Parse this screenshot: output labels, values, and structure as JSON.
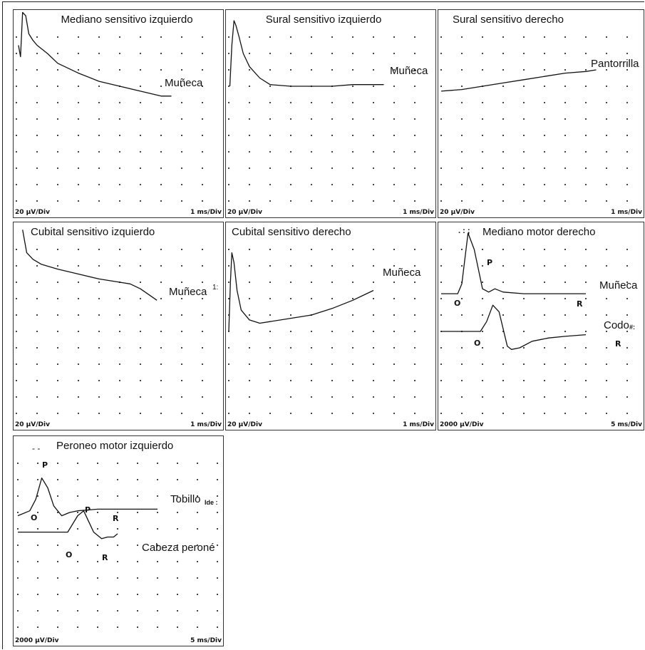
{
  "chart_data": [
    {
      "type": "line",
      "title": "Mediano sensitivo izquierdo",
      "scale_y": "20 μV/Div",
      "scale_x": "1 ms/Div",
      "grid": true,
      "series": [
        {
          "name": "Muñeca",
          "x": [
            0.1,
            0.2,
            0.3,
            0.45,
            0.6,
            0.8,
            1.0,
            1.5,
            2.0,
            3.0,
            4.0,
            5.0,
            6.0,
            7.0,
            7.5
          ],
          "y": [
            -1.5,
            -2.2,
            0.5,
            0.3,
            -0.8,
            -1.2,
            -1.5,
            -2.0,
            -2.6,
            -3.2,
            -3.7,
            -4.0,
            -4.3,
            -4.6,
            -4.6
          ]
        }
      ]
    },
    {
      "type": "line",
      "title": "Sural sensitivo izquierdo",
      "scale_y": "20 μV/Div",
      "scale_x": "1 ms/Div",
      "grid": true,
      "series": [
        {
          "name": "Muñeca",
          "x": [
            0.05,
            0.15,
            0.25,
            0.35,
            0.5,
            0.7,
            1.0,
            1.5,
            2.0,
            3.0,
            4.0,
            5.0,
            6.0,
            7.0,
            7.5
          ],
          "y": [
            -4.0,
            -1.5,
            0.0,
            -0.3,
            -1.0,
            -2.0,
            -2.8,
            -3.5,
            -3.9,
            -4.0,
            -4.0,
            -4.0,
            -3.9,
            -3.9,
            -3.9
          ]
        }
      ]
    },
    {
      "type": "line",
      "title": "Sural sensitivo derecho",
      "scale_y": "20 μV/Div",
      "scale_x": "1 ms/Div",
      "grid": true,
      "series": [
        {
          "name": "Pantorrilla",
          "x": [
            0.0,
            1.0,
            2.0,
            3.0,
            4.0,
            5.0,
            6.0,
            7.0,
            7.5
          ],
          "y": [
            -4.3,
            -4.2,
            -4.0,
            -3.8,
            -3.6,
            -3.4,
            -3.2,
            -3.1,
            -3.0
          ]
        }
      ]
    },
    {
      "type": "line",
      "title": "Cubital sensitivo izquierdo",
      "scale_y": "20 μV/Div",
      "scale_x": "1 ms/Div",
      "grid": true,
      "series": [
        {
          "name": "Muñeca",
          "x": [
            0.3,
            0.5,
            0.8,
            1.2,
            2.0,
            3.0,
            4.0,
            5.0,
            5.5,
            6.0,
            6.8
          ],
          "y": [
            0.2,
            -1.2,
            -1.6,
            -1.9,
            -2.2,
            -2.5,
            -2.8,
            -3.0,
            -3.1,
            -3.4,
            -4.1
          ]
        }
      ]
    },
    {
      "type": "line",
      "title": "Cubital sensitivo derecho",
      "scale_y": "20 μV/Div",
      "scale_x": "1 ms/Div",
      "grid": true,
      "series": [
        {
          "name": "Muñeca",
          "x": [
            0.0,
            0.08,
            0.15,
            0.25,
            0.4,
            0.6,
            1.0,
            1.5,
            2.0,
            3.0,
            4.0,
            5.0,
            6.0,
            7.0
          ],
          "y": [
            -6.0,
            -3.0,
            -1.2,
            -1.8,
            -3.5,
            -4.7,
            -5.3,
            -5.5,
            -5.4,
            -5.2,
            -5.0,
            -4.6,
            -4.1,
            -3.5
          ]
        }
      ]
    },
    {
      "type": "line",
      "title": "Mediano motor derecho",
      "scale_y": "2000 μV/Div",
      "scale_x": "5 ms/Div",
      "grid": true,
      "series": [
        {
          "name": "Muñeca",
          "x": [
            0.0,
            0.8,
            1.0,
            1.3,
            1.6,
            2.0,
            2.3,
            2.6,
            3.0,
            4.0,
            5.0,
            7.0
          ],
          "y": [
            -3.7,
            -3.7,
            -3.1,
            0.0,
            -1.0,
            -3.4,
            -3.6,
            -3.4,
            -3.6,
            -3.7,
            -3.7,
            -3.7
          ]
        },
        {
          "name": "Codo",
          "x": [
            0.0,
            1.9,
            2.2,
            2.5,
            2.8,
            3.2,
            3.4,
            3.8,
            4.4,
            5.2,
            6.0,
            7.0
          ],
          "y": [
            -6.0,
            -6.0,
            -5.4,
            -4.4,
            -4.8,
            -6.9,
            -7.1,
            -7.0,
            -6.6,
            -6.4,
            -6.3,
            -6.2
          ]
        }
      ],
      "markers": [
        "O",
        "P",
        "R",
        "O",
        "R"
      ]
    },
    {
      "type": "line",
      "title": "Peroneo motor izquierdo",
      "scale_y": "2000 μV/Div",
      "scale_x": "5 ms/Div",
      "grid": true,
      "series": [
        {
          "name": "Tobillo",
          "x": [
            0.0,
            0.6,
            0.9,
            1.2,
            1.5,
            1.8,
            2.2,
            2.6,
            3.0,
            4.0,
            5.5,
            7.0
          ],
          "y": [
            -4.2,
            -3.9,
            -3.2,
            -1.9,
            -2.5,
            -3.6,
            -4.2,
            -4.0,
            -3.9,
            -3.8,
            -3.8,
            -3.8
          ]
        },
        {
          "name": "Cabeza peroné",
          "x": [
            0.0,
            2.0,
            2.5,
            3.0,
            3.3,
            3.8,
            4.2,
            4.5,
            4.8,
            5.0
          ],
          "y": [
            -5.2,
            -5.2,
            -5.2,
            -4.2,
            -3.9,
            -5.2,
            -5.6,
            -5.5,
            -5.5,
            -5.3
          ]
        }
      ],
      "markers": [
        "P",
        "O",
        "R",
        "P",
        "O",
        "R"
      ]
    }
  ],
  "labels": {
    "tobillo_suffix": "Ide :",
    "codo_suffix": "#:",
    "cubital_izq_suffix": "1:",
    "mediano_motor_title_prefix": ". : ;",
    "peroneo_title_prefix": "- -"
  }
}
